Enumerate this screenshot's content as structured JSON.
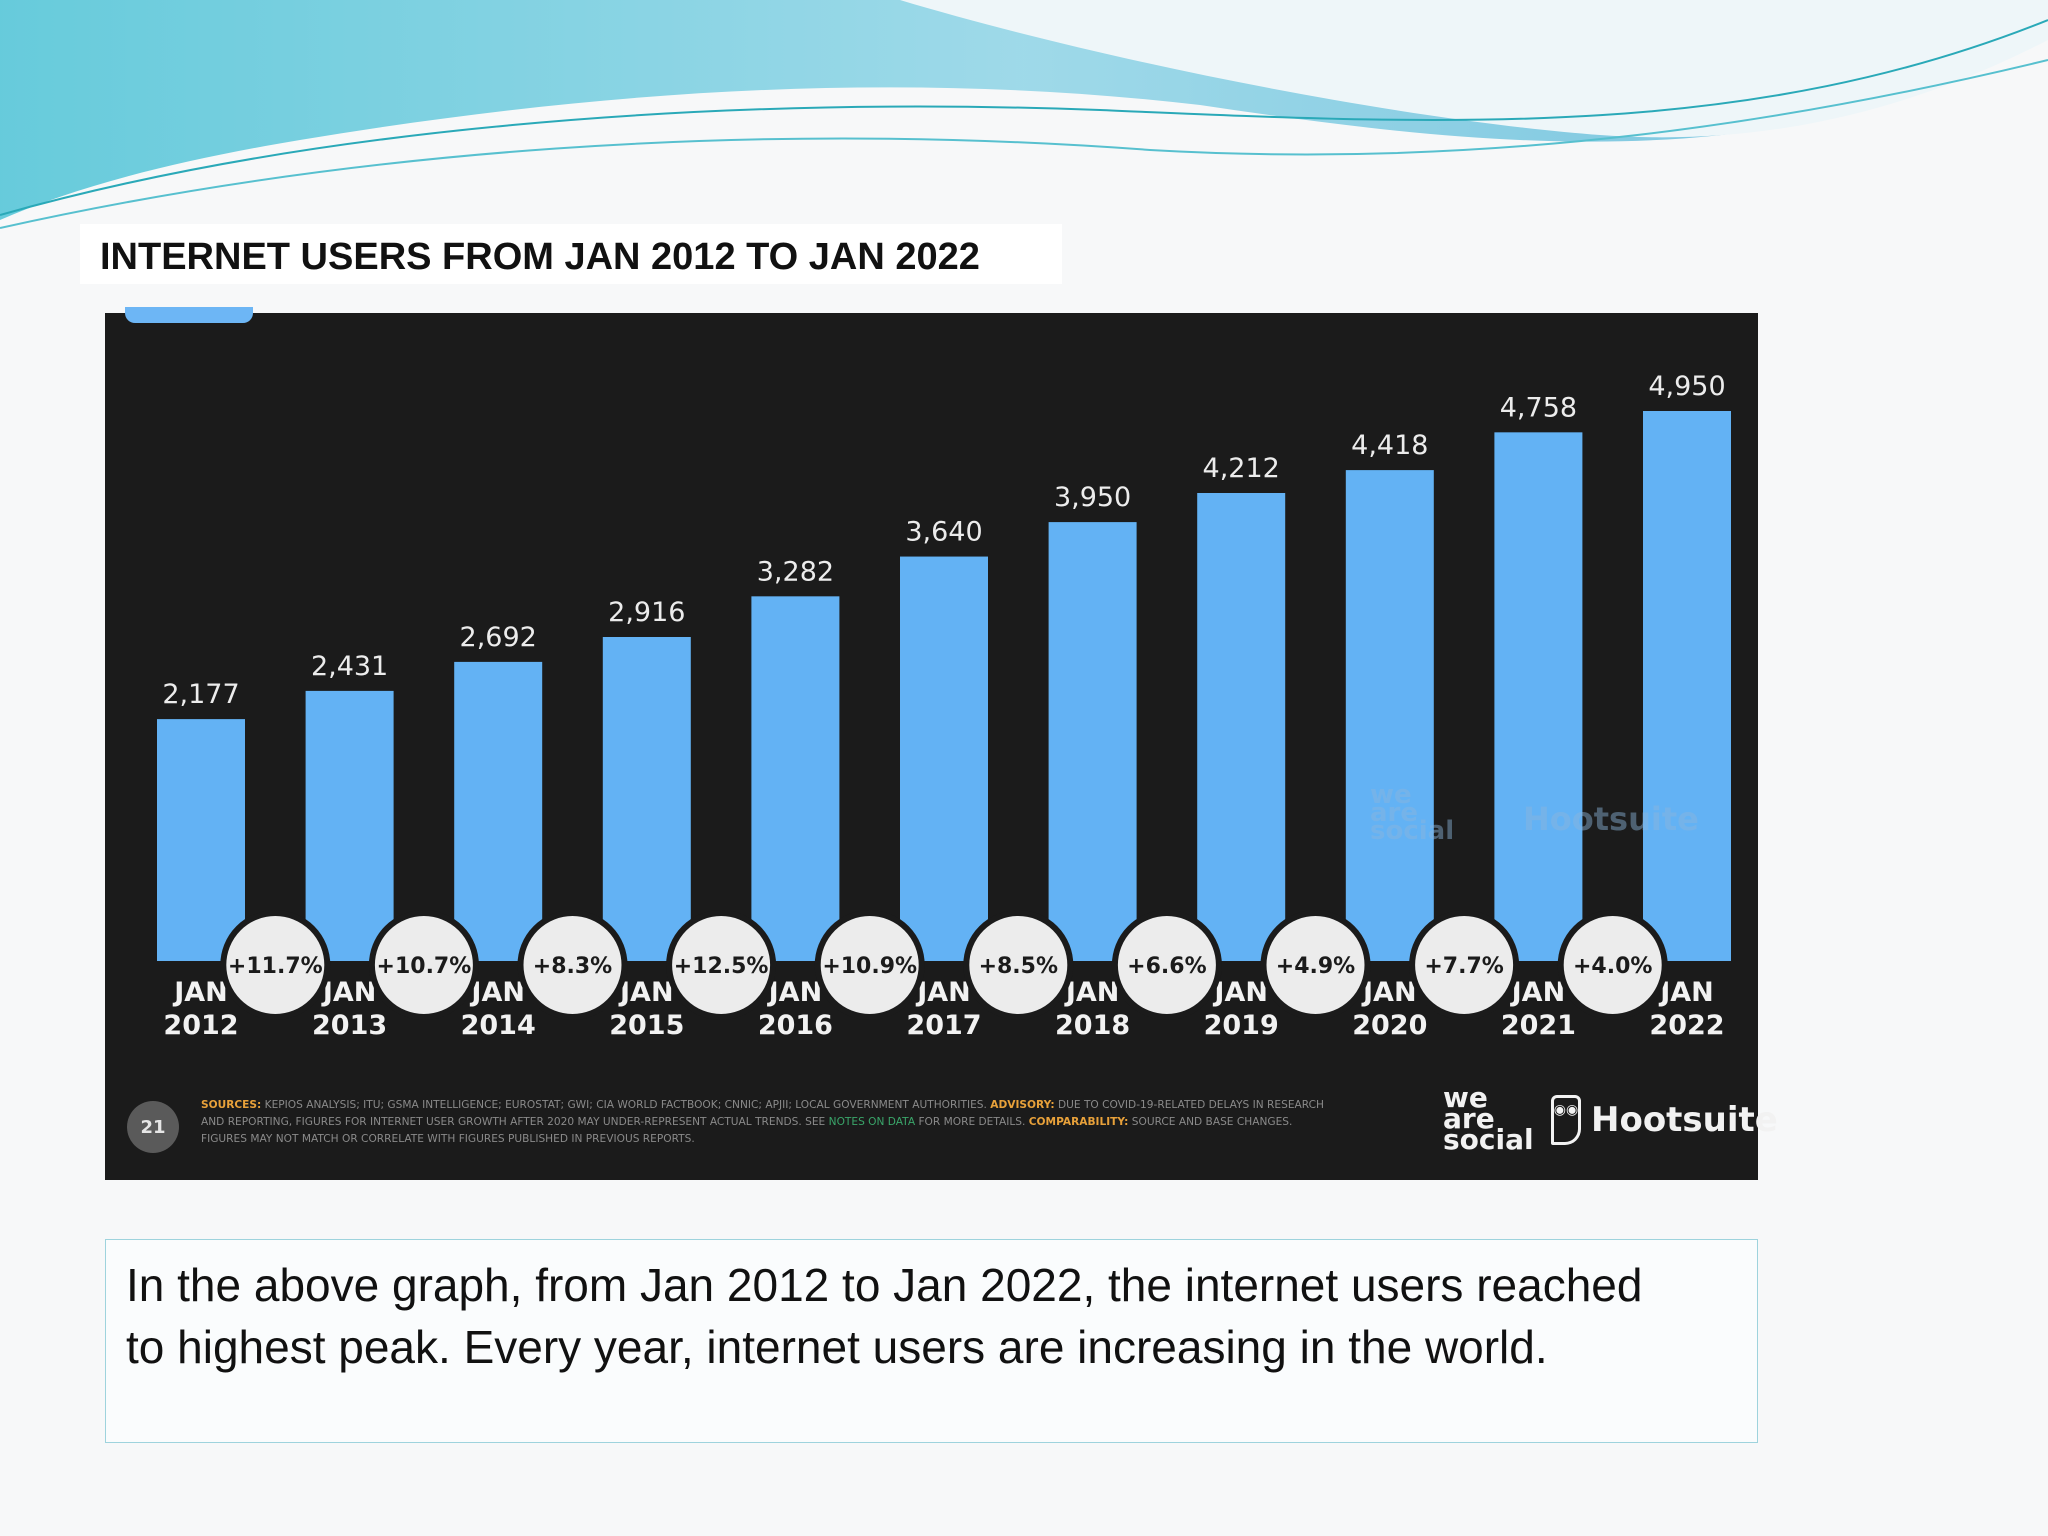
{
  "slide": {
    "title": "INTERNET USERS FROM JAN 2012 TO JAN 2022",
    "description": "In the above graph, from Jan 2012 to Jan 2022, the internet users reached to highest peak. Every year, internet users are increasing in the world.",
    "colors": {
      "accent_wave": "#5cc8dc",
      "bar": "#63b2f4",
      "panel": "#1b1b1b"
    }
  },
  "chart_data": {
    "type": "bar",
    "title": "",
    "xlabel": "",
    "ylabel": "",
    "ylim": [
      0,
      4950
    ],
    "grid": false,
    "categories": [
      "JAN 2012",
      "JAN 2013",
      "JAN 2014",
      "JAN 2015",
      "JAN 2016",
      "JAN 2017",
      "JAN 2018",
      "JAN 2019",
      "JAN 2020",
      "JAN 2021",
      "JAN 2022"
    ],
    "values": [
      2177,
      2431,
      2692,
      2916,
      3282,
      3640,
      3950,
      4212,
      4418,
      4758,
      4950
    ],
    "value_labels": [
      "2,177",
      "2,431",
      "2,692",
      "2,916",
      "3,282",
      "3,640",
      "3,950",
      "4,212",
      "4,418",
      "4,758",
      "4,950"
    ],
    "growth_labels": [
      "+11.7%",
      "+10.7%",
      "+8.3%",
      "+12.5%",
      "+10.9%",
      "+8.5%",
      "+6.6%",
      "+4.9%",
      "+7.7%",
      "+4.0%"
    ]
  },
  "footer": {
    "page_number": "21",
    "sources_label": "SOURCES:",
    "sources_text": "KEPIOS ANALYSIS; ITU; GSMA INTELLIGENCE; EUROSTAT; GWI; CIA WORLD FACTBOOK; CNNIC; APJII; LOCAL GOVERNMENT AUTHORITIES.",
    "advisory_label": "ADVISORY:",
    "advisory_text": "DUE TO COVID-19-RELATED DELAYS IN RESEARCH AND REPORTING, FIGURES FOR INTERNET USER GROWTH AFTER 2020 MAY UNDER-REPRESENT ACTUAL TRENDS. SEE",
    "notes_link": "NOTES ON DATA",
    "notes_tail": "FOR MORE DETAILS.",
    "comparability_label": "COMPARABILITY:",
    "comparability_text": "SOURCE AND BASE CHANGES. FIGURES MAY NOT MATCH OR CORRELATE WITH FIGURES PUBLISHED IN PREVIOUS REPORTS.",
    "logo_we": "we",
    "logo_are": "are",
    "logo_social": "social",
    "logo_hootsuite": "Hootsuite",
    "watermark_we": "we",
    "watermark_are": "are",
    "watermark_social": "social",
    "watermark_hootsuite": "Hootsuite"
  }
}
